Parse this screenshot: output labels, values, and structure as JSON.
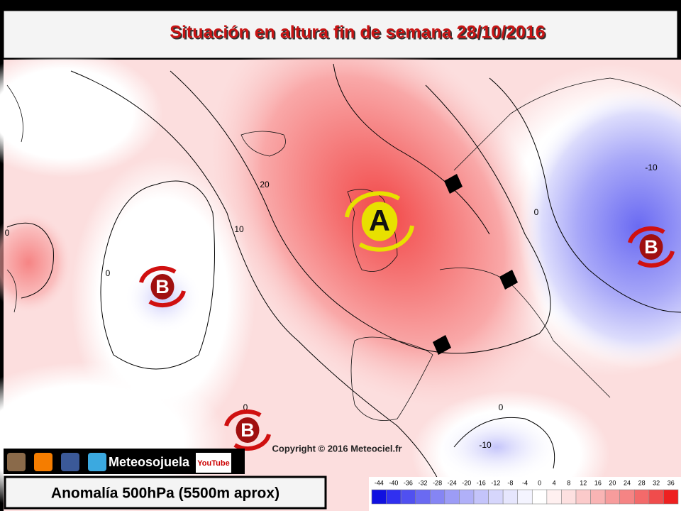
{
  "header": {
    "title": "Situación en altura fin de semana 28/10/2016"
  },
  "map": {
    "contour_labels": [
      "20",
      "10",
      "0",
      "0",
      "-10",
      "0",
      "-10",
      "0",
      "0"
    ],
    "highs": [
      "A"
    ],
    "lows": [
      "B",
      "B",
      "B"
    ],
    "copyright": "Copyright © 2016 Meteociel.fr"
  },
  "footer": {
    "social_name": "Meteosojuela",
    "youtube": "YouTube",
    "caption": "Anomalía 500hPa (5500m aprox)"
  },
  "legend": {
    "ticks": [
      -44,
      -40,
      -36,
      -32,
      -28,
      -24,
      -20,
      -16,
      -12,
      -8,
      -4,
      0,
      4,
      8,
      12,
      16,
      20,
      24,
      28,
      32,
      36
    ],
    "colors": [
      "#1010e0",
      "#3030f0",
      "#5050f0",
      "#6a6af2",
      "#8585f4",
      "#9c9cf6",
      "#b0b0f8",
      "#c4c4fa",
      "#d6d6fc",
      "#e6e6fd",
      "#f4f4ff",
      "#ffffff",
      "#fff0f0",
      "#fde0e0",
      "#fbcaca",
      "#f9b4b4",
      "#f79c9c",
      "#f58484",
      "#f36a6a",
      "#f04c4c",
      "#ee2020"
    ]
  }
}
